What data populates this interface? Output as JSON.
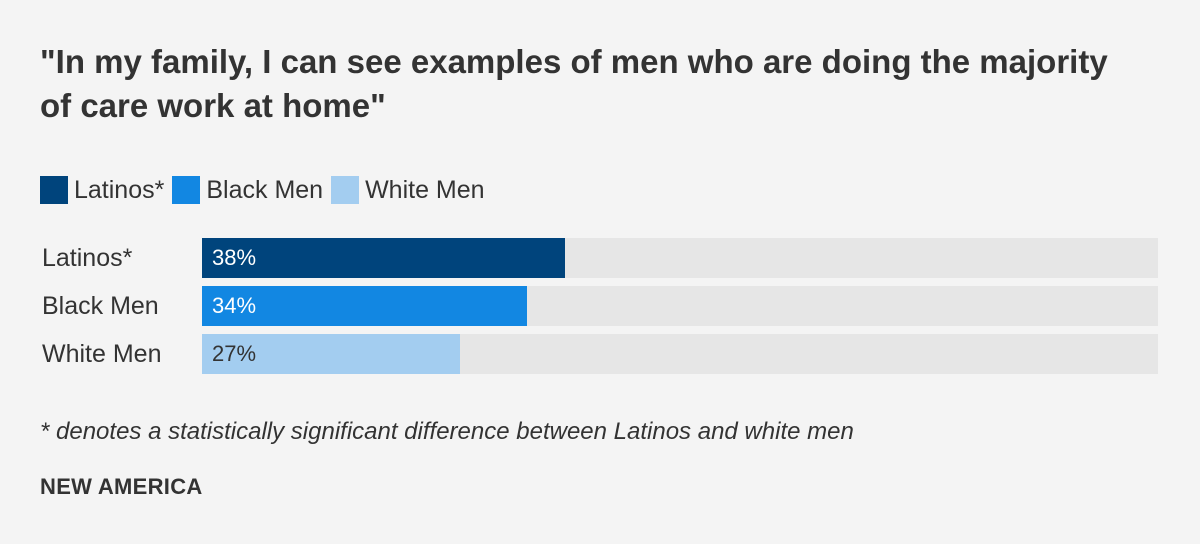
{
  "chart_data": {
    "type": "bar",
    "orientation": "horizontal",
    "title": "\"In my family, I can see examples of men who are doing the majority of care work at home\"",
    "categories": [
      "Latinos*",
      "Black Men",
      "White Men"
    ],
    "values": [
      38,
      34,
      27
    ],
    "value_labels": [
      "38%",
      "34%",
      "27%"
    ],
    "xlim": [
      0,
      100
    ],
    "unit": "%",
    "colors": [
      "#00447c",
      "#1287e2",
      "#a3cdf0"
    ],
    "label_colors": [
      "#ffffff",
      "#ffffff",
      "#333333"
    ],
    "track_color": "#e6e6e6",
    "legend": [
      "Latinos*",
      "Black Men",
      "White Men"
    ],
    "legend_placement": "top-left",
    "footnote": "* denotes a statistically significant difference between Latinos and white men",
    "source": "NEW AMERICA"
  }
}
